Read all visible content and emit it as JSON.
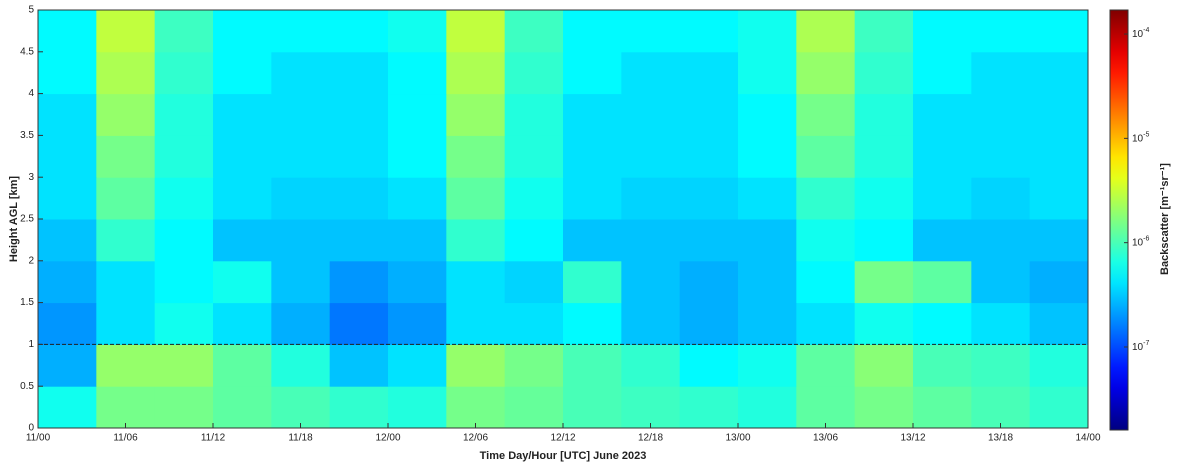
{
  "chart_data": {
    "type": "heatmap",
    "xlabel": "Time Day/Hour [UTC] June 2023",
    "ylabel": "Height AGL [km]",
    "colorbar_label": "Backscatter [m⁻¹sr⁻¹]",
    "colormap": "jet",
    "clog": true,
    "clim": [
      1.6e-08,
      0.00017
    ],
    "cticks": [
      {
        "value": 1e-07,
        "label": "10",
        "exponent": "-7"
      },
      {
        "value": 1e-06,
        "label": "10",
        "exponent": "-6"
      },
      {
        "value": 1e-05,
        "label": "10",
        "exponent": "-5"
      },
      {
        "value": 0.0001,
        "label": "10",
        "exponent": "-4"
      }
    ],
    "xlim": [
      0,
      72
    ],
    "xticks": [
      {
        "value": 0,
        "label": "11/00"
      },
      {
        "value": 6,
        "label": "11/06"
      },
      {
        "value": 12,
        "label": "11/12"
      },
      {
        "value": 18,
        "label": "11/18"
      },
      {
        "value": 24,
        "label": "12/00"
      },
      {
        "value": 30,
        "label": "12/06"
      },
      {
        "value": 36,
        "label": "12/12"
      },
      {
        "value": 42,
        "label": "12/18"
      },
      {
        "value": 48,
        "label": "13/00"
      },
      {
        "value": 54,
        "label": "13/06"
      },
      {
        "value": 60,
        "label": "13/12"
      },
      {
        "value": 66,
        "label": "13/18"
      },
      {
        "value": 72,
        "label": "14/00"
      }
    ],
    "ylim": [
      0,
      5
    ],
    "yticks": [
      0,
      0.5,
      1,
      1.5,
      2,
      2.5,
      3,
      3.5,
      4,
      4.5,
      5
    ],
    "hline": 1,
    "x_edges": [
      0,
      4,
      8,
      12,
      16,
      20,
      24,
      28,
      32,
      36,
      40,
      44,
      48,
      52,
      56,
      60,
      64,
      68,
      72
    ],
    "y_edges": [
      0,
      0.5,
      1,
      1.5,
      2,
      2.5,
      3,
      3.5,
      4,
      4.5,
      5
    ],
    "z": [
      [
        6e-07,
        1.5e-06,
        1.5e-06,
        1.2e-06,
        1e-06,
        8e-07,
        7e-07,
        1.5e-06,
        1.3e-06,
        1e-06,
        9e-07,
        8e-07,
        7e-07,
        1.2e-06,
        1.5e-06,
        1.2e-06,
        1e-06,
        8e-07
      ],
      [
        2.5e-07,
        2e-06,
        2e-06,
        1.2e-06,
        7e-07,
        3e-07,
        4e-07,
        2e-06,
        1.5e-06,
        1e-06,
        8e-07,
        5e-07,
        6e-07,
        1.2e-06,
        1.8e-06,
        1e-06,
        9e-07,
        7e-07
      ],
      [
        2e-07,
        4e-07,
        6e-07,
        4e-07,
        2.5e-07,
        1.5e-07,
        2e-07,
        4e-07,
        4e-07,
        5e-07,
        3e-07,
        2.5e-07,
        3e-07,
        4e-07,
        6e-07,
        5e-07,
        4e-07,
        3e-07
      ],
      [
        2.5e-07,
        4e-07,
        5e-07,
        6e-07,
        3e-07,
        2e-07,
        2.5e-07,
        4e-07,
        3.5e-07,
        8e-07,
        3e-07,
        2.5e-07,
        3e-07,
        5e-07,
        1.5e-06,
        1.2e-06,
        3e-07,
        2.5e-07
      ],
      [
        3e-07,
        8e-07,
        5e-07,
        3e-07,
        3e-07,
        3e-07,
        3e-07,
        8e-07,
        5e-07,
        3e-07,
        3e-07,
        3e-07,
        3e-07,
        6e-07,
        5e-07,
        3e-07,
        3e-07,
        3e-07
      ],
      [
        4e-07,
        1.2e-06,
        6e-07,
        4e-07,
        3.5e-07,
        3.5e-07,
        4e-07,
        1.2e-06,
        6e-07,
        4e-07,
        3.5e-07,
        3.5e-07,
        4e-07,
        8e-07,
        6e-07,
        4e-07,
        3.5e-07,
        4e-07
      ],
      [
        4e-07,
        1.5e-06,
        7e-07,
        4e-07,
        4e-07,
        4e-07,
        5e-07,
        1.5e-06,
        7e-07,
        4e-07,
        4e-07,
        4e-07,
        5e-07,
        1.2e-06,
        7e-07,
        4e-07,
        4e-07,
        4e-07
      ],
      [
        4e-07,
        2e-06,
        7e-07,
        4e-07,
        4e-07,
        4e-07,
        5e-07,
        2e-06,
        7e-07,
        4e-07,
        4e-07,
        4e-07,
        5e-07,
        1.5e-06,
        7e-07,
        4e-07,
        4e-07,
        4e-07
      ],
      [
        5e-07,
        2.5e-06,
        8e-07,
        5e-07,
        4e-07,
        4e-07,
        5e-07,
        2.5e-06,
        8e-07,
        5e-07,
        4e-07,
        4e-07,
        6e-07,
        2e-06,
        8e-07,
        5e-07,
        4e-07,
        4e-07
      ],
      [
        5e-07,
        3e-06,
        9e-07,
        5e-07,
        5e-07,
        5e-07,
        6e-07,
        3e-06,
        9e-07,
        5e-07,
        5e-07,
        5e-07,
        6e-07,
        2.5e-06,
        9e-07,
        5e-07,
        5e-07,
        5e-07
      ]
    ]
  }
}
